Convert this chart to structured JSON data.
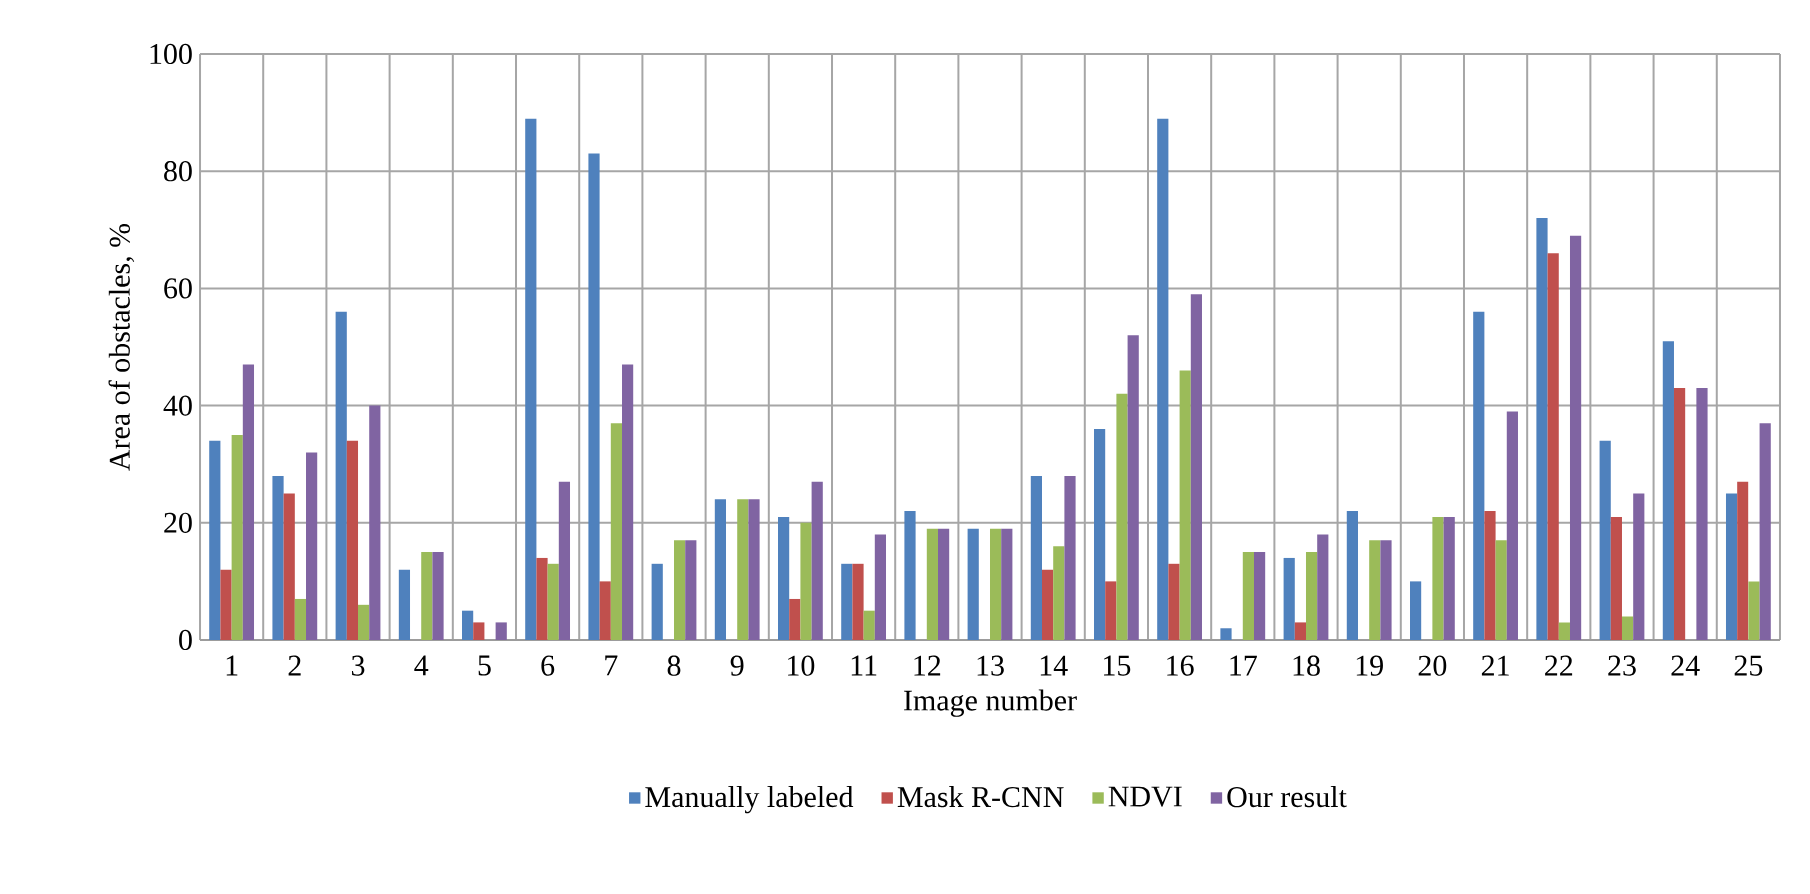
{
  "chart_data": {
    "type": "bar",
    "xlabel": "Image number",
    "ylabel": "Area of obstacles, %",
    "categories": [
      "1",
      "2",
      "3",
      "4",
      "5",
      "6",
      "7",
      "8",
      "9",
      "10",
      "11",
      "12",
      "13",
      "14",
      "15",
      "16",
      "17",
      "18",
      "19",
      "20",
      "21",
      "22",
      "23",
      "24",
      "25"
    ],
    "series": [
      {
        "name": "Manually labeled",
        "color": "#4f81bd",
        "values": [
          34,
          28,
          56,
          12,
          5,
          89,
          83,
          13,
          24,
          21,
          13,
          22,
          19,
          28,
          36,
          89,
          2,
          14,
          22,
          10,
          56,
          72,
          34,
          51,
          25
        ]
      },
      {
        "name": "Mask R-CNN",
        "color": "#c0504d",
        "values": [
          12,
          25,
          34,
          0,
          3,
          14,
          10,
          0,
          0,
          7,
          13,
          0,
          0,
          12,
          10,
          13,
          0,
          3,
          0,
          0,
          22,
          66,
          21,
          43,
          27
        ]
      },
      {
        "name": "NDVI",
        "color": "#9bbb59",
        "values": [
          35,
          7,
          6,
          15,
          0,
          13,
          37,
          17,
          24,
          20,
          5,
          19,
          19,
          16,
          42,
          46,
          15,
          15,
          17,
          21,
          17,
          3,
          4,
          0,
          10
        ]
      },
      {
        "name": "Our result",
        "color": "#8064a2",
        "values": [
          47,
          32,
          40,
          15,
          3,
          27,
          47,
          17,
          24,
          27,
          18,
          19,
          19,
          28,
          52,
          59,
          15,
          18,
          17,
          21,
          39,
          69,
          25,
          43,
          37
        ]
      }
    ],
    "ylim": [
      0,
      100
    ],
    "yticks": [
      0,
      20,
      40,
      60,
      80,
      100
    ],
    "grid": true,
    "legend": "bottom"
  }
}
